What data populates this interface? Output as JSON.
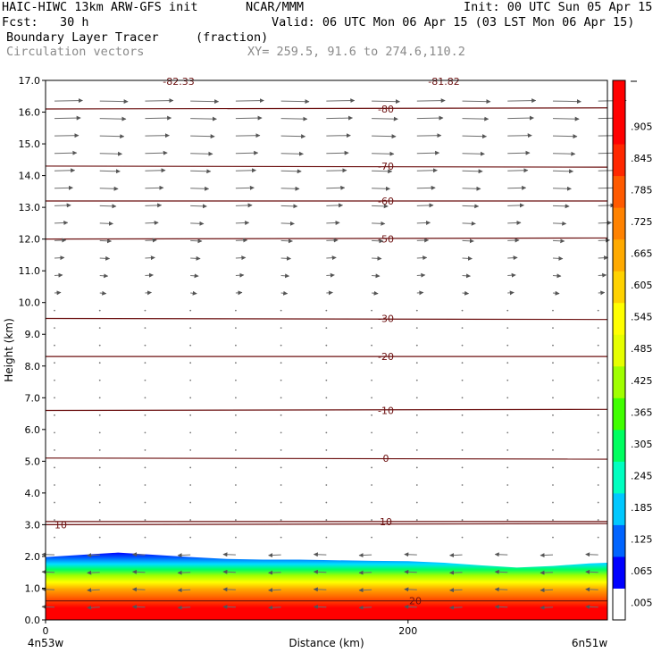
{
  "header": {
    "model": "HAIC-HIWC 13km ARW-GFS init",
    "org": "NCAR/MMM",
    "init": "Init: 00 UTC Sun 05 Apr 15",
    "fcst": "Fcst:   30 h",
    "valid": "Valid: 06 UTC Mon 06 Apr 15 (03 LST Mon 06 Apr 15)",
    "field": "Boundary Layer Tracer",
    "units": "(fraction)",
    "vectors": "Circulation vectors",
    "xy": "XY= 259.5, 91.6 to 274.6,110.2"
  },
  "chart_data": {
    "type": "heatmap",
    "xlabel": "Distance (km)",
    "ylabel": "Height (km)",
    "xlim": [
      0,
      310
    ],
    "ylim": [
      0,
      17
    ],
    "x_ticks": [
      "0",
      "200"
    ],
    "x_tick_values": [
      0,
      200
    ],
    "y_ticks": [
      "0.0",
      "1.0",
      "2.0",
      "3.0",
      "4.0",
      "5.0",
      "6.0",
      "7.0",
      "8.0",
      "9.0",
      "10.0",
      "11.0",
      "12.0",
      "13.0",
      "14.0",
      "15.0",
      "16.0",
      "17.0"
    ],
    "x_endpoints": {
      "left": "4n53w",
      "right": "6n51w"
    },
    "colorbar": {
      "labels": [
        ".005",
        ".065",
        ".125",
        ".185",
        ".245",
        ".305",
        ".365",
        ".425",
        ".485",
        ".545",
        ".605",
        ".665",
        ".725",
        ".785",
        ".845",
        ".905"
      ],
      "colors": [
        "#ffffff",
        "#0000ff",
        "#0064ff",
        "#00c8ff",
        "#00ffc0",
        "#00ff60",
        "#40ff00",
        "#a0ff00",
        "#e6ff00",
        "#ffff00",
        "#ffd200",
        "#ffaa00",
        "#ff8200",
        "#ff5a00",
        "#ff2800",
        "#ff0000",
        "#ff0000"
      ]
    },
    "boundary_layer_top_km": [
      [
        0,
        1.98
      ],
      [
        20,
        2.05
      ],
      [
        40,
        2.12
      ],
      [
        60,
        2.05
      ],
      [
        80,
        1.98
      ],
      [
        100,
        1.92
      ],
      [
        120,
        1.9
      ],
      [
        140,
        1.9
      ],
      [
        160,
        1.88
      ],
      [
        180,
        1.86
      ],
      [
        200,
        1.85
      ],
      [
        220,
        1.8
      ],
      [
        240,
        1.72
      ],
      [
        260,
        1.65
      ],
      [
        280,
        1.7
      ],
      [
        300,
        1.78
      ],
      [
        310,
        1.8
      ]
    ],
    "isotherms_C": [
      {
        "label": "10",
        "y": 3.0
      },
      {
        "label": "10",
        "y": 3.1
      },
      {
        "label": "0",
        "y": 5.1
      },
      {
        "label": "-10",
        "y": 6.6
      },
      {
        "label": "-20",
        "y": 8.3
      },
      {
        "label": "-30",
        "y": 9.5
      },
      {
        "label": "-50",
        "y": 12.0
      },
      {
        "label": "-60",
        "y": 13.2
      },
      {
        "label": "-70",
        "y": 14.3
      },
      {
        "label": "-80",
        "y": 16.1
      },
      {
        "label": "20",
        "y": 0.6
      }
    ],
    "extra_labels": [
      "-82.33",
      "-81.82"
    ]
  }
}
